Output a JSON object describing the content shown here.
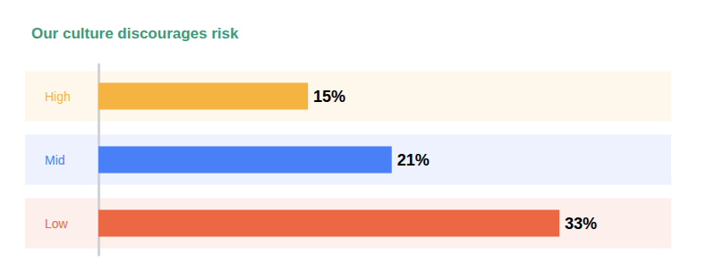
{
  "chart_data": {
    "type": "bar",
    "title": "Our culture discourages risk",
    "orientation": "horizontal",
    "categories": [
      "High",
      "Mid",
      "Low"
    ],
    "values": [
      15,
      21,
      33
    ],
    "value_labels": [
      "15%",
      "21%",
      "33%"
    ],
    "colors": [
      "#f5b342",
      "#4a80f7",
      "#ec6845"
    ],
    "data_labels": true,
    "tick_labels": "y",
    "grid": false
  }
}
